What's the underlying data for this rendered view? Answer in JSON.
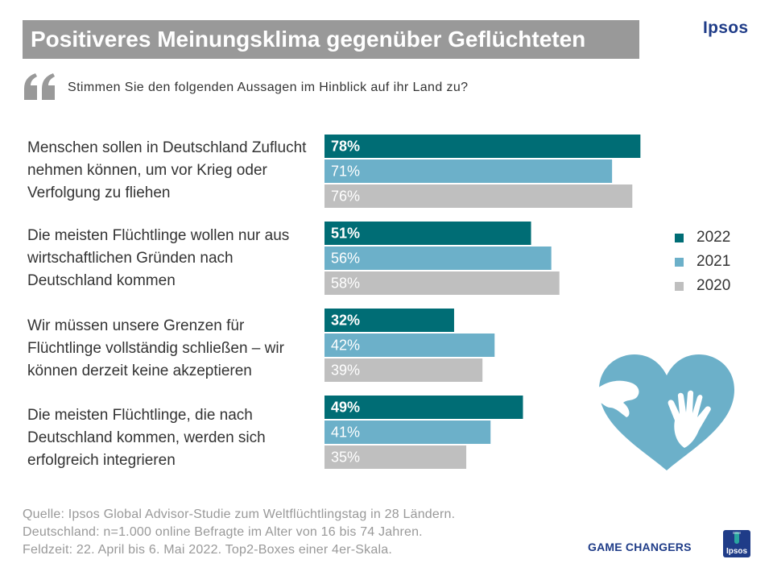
{
  "title": "Positiveres Meinungsklima gegenüber Geflüchteten",
  "brand": "Ipsos",
  "question": "Stimmen Sie den folgenden Aussagen im Hinblick auf ihr Land zu?",
  "statements": [
    "Menschen sollen in Deutschland Zuflucht nehmen können, um vor Krieg oder Verfolgung zu fliehen",
    "Die meisten Flüchtlinge wollen nur aus wirtschaftlichen Gründen nach Deutschland kommen",
    "Wir müssen unsere Grenzen für Flüchtlinge vollständig schließen – wir können derzeit keine akzeptieren",
    "Die meisten Flüchtlinge, die nach Deutschland kommen, werden sich erfolgreich integrieren"
  ],
  "chart_data": {
    "type": "bar",
    "orientation": "horizontal",
    "categories": [
      "Menschen sollen in Deutschland Zuflucht nehmen können, um vor Krieg oder Verfolgung zu fliehen",
      "Die meisten Flüchtlinge wollen nur aus wirtschaftlichen Gründen nach Deutschland kommen",
      "Wir müssen unsere Grenzen für Flüchtlinge vollständig schließen – wir können derzeit keine akzeptieren",
      "Die meisten Flüchtlinge, die nach Deutschland kommen, werden sich erfolgreich integrieren"
    ],
    "series": [
      {
        "name": "2022",
        "color": "#006d75",
        "values": [
          78,
          51,
          32,
          49
        ],
        "labels": [
          "78%",
          "51%",
          "32%",
          "49%"
        ]
      },
      {
        "name": "2021",
        "color": "#6cb0c9",
        "values": [
          71,
          56,
          42,
          41
        ],
        "labels": [
          "71%",
          "56%",
          "42%",
          "41%"
        ]
      },
      {
        "name": "2020",
        "color": "#bfbfbf",
        "values": [
          76,
          58,
          39,
          35
        ],
        "labels": [
          "76%",
          "58%",
          "39%",
          "35%"
        ]
      }
    ],
    "xlim": [
      0,
      100
    ],
    "unit": "%",
    "legend_position": "right"
  },
  "legend": [
    {
      "label": "2022",
      "color": "#006d75"
    },
    {
      "label": "2021",
      "color": "#6cb0c9"
    },
    {
      "label": "2020",
      "color": "#bfbfbf"
    }
  ],
  "source_lines": [
    "Quelle: Ipsos Global Advisor-Studie zum Weltflüchtlingstag in 28 Ländern.",
    "Deutschland: n=1.000 online Befragte im Alter von 16 bis 74 Jahren.",
    "Feldzeit: 22. April bis 6. Mai 2022. Top2-Boxes einer 4er-Skala."
  ],
  "footer": {
    "tagline": "GAME CHANGERS",
    "badge_text": "Ipsos"
  },
  "icons": [
    "quote-icon",
    "heart-hands-icon",
    "ipsos-badge-icon"
  ]
}
